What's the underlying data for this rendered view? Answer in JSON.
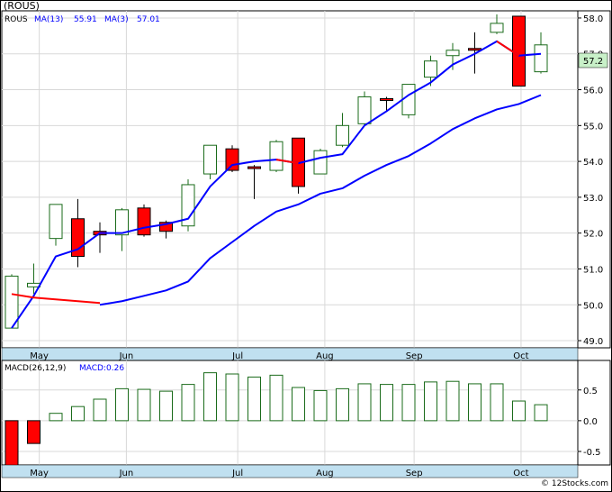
{
  "ticker_label": "(ROUS)",
  "copyright": "© 12Stocks.com",
  "colors": {
    "up_candle": "#1a6b1a",
    "down_candle": "#ff0000",
    "ma13": "#0000ff",
    "ma3_down": "#ff0000",
    "axis_band": "#c0e0f0",
    "grid": "#d8d8d8",
    "price_tag_bg": "#c8f0c8"
  },
  "chart_data": [
    {
      "type": "candlestick",
      "legend": {
        "symbol": "ROUS",
        "ma13_label": "MA(13)",
        "ma13_value": "55.91",
        "ma3_label": "MA(3)",
        "ma3_value": "57.01"
      },
      "last_price_tag": "57.2",
      "ylim": [
        48.8,
        58.2
      ],
      "y_ticks": [
        "49.0",
        "50.0",
        "51.0",
        "52.0",
        "53.0",
        "54.0",
        "55.0",
        "56.0",
        "57.0",
        "58.0"
      ],
      "x_ticks": [
        {
          "label": "May",
          "week": 1.25
        },
        {
          "label": "Jun",
          "week": 5.2
        },
        {
          "label": "Jul",
          "week": 10.25
        },
        {
          "label": "Aug",
          "week": 14.2
        },
        {
          "label": "Sep",
          "week": 18.25
        },
        {
          "label": "Oct",
          "week": 23.1
        }
      ],
      "candles": [
        {
          "open": 49.35,
          "high": 50.85,
          "low": 49.35,
          "close": 50.8
        },
        {
          "open": 50.5,
          "high": 51.15,
          "low": 50.3,
          "close": 50.6
        },
        {
          "open": 51.85,
          "high": 52.8,
          "low": 51.65,
          "close": 52.8
        },
        {
          "open": 52.4,
          "high": 52.95,
          "low": 51.05,
          "close": 51.35
        },
        {
          "open": 52.05,
          "high": 52.3,
          "low": 51.45,
          "close": 51.95
        },
        {
          "open": 51.95,
          "high": 52.7,
          "low": 51.5,
          "close": 52.65
        },
        {
          "open": 52.7,
          "high": 52.8,
          "low": 51.9,
          "close": 51.95
        },
        {
          "open": 52.3,
          "high": 52.35,
          "low": 51.85,
          "close": 52.05
        },
        {
          "open": 52.2,
          "high": 53.5,
          "low": 52.05,
          "close": 53.35
        },
        {
          "open": 53.65,
          "high": 54.45,
          "low": 53.5,
          "close": 54.45
        },
        {
          "open": 54.35,
          "high": 54.45,
          "low": 53.7,
          "close": 53.75
        },
        {
          "open": 53.85,
          "high": 53.9,
          "low": 52.95,
          "close": 53.8
        },
        {
          "open": 53.75,
          "high": 54.6,
          "low": 53.7,
          "close": 54.55
        },
        {
          "open": 54.65,
          "high": 54.65,
          "low": 53.1,
          "close": 53.3
        },
        {
          "open": 53.65,
          "high": 54.35,
          "low": 53.65,
          "close": 54.3
        },
        {
          "open": 54.45,
          "high": 55.35,
          "low": 54.4,
          "close": 55.0
        },
        {
          "open": 55.05,
          "high": 55.95,
          "low": 55.0,
          "close": 55.8
        },
        {
          "open": 55.75,
          "high": 55.8,
          "low": 55.4,
          "close": 55.7
        },
        {
          "open": 55.3,
          "high": 56.15,
          "low": 55.2,
          "close": 56.15
        },
        {
          "open": 56.35,
          "high": 56.95,
          "low": 56.1,
          "close": 56.8
        },
        {
          "open": 56.95,
          "high": 57.3,
          "low": 56.55,
          "close": 57.1
        },
        {
          "open": 57.15,
          "high": 57.6,
          "low": 56.45,
          "close": 57.1
        },
        {
          "open": 57.6,
          "high": 58.1,
          "low": 57.55,
          "close": 57.85
        },
        {
          "open": 58.05,
          "high": 58.05,
          "low": 56.1,
          "close": 56.1
        },
        {
          "open": 56.5,
          "high": 57.6,
          "low": 56.45,
          "close": 57.25
        }
      ],
      "ma13": [
        {
          "week": 0,
          "value": 49.35
        },
        {
          "week": 1,
          "value": 50.25
        },
        {
          "week": 2,
          "value": 51.35
        },
        {
          "week": 3,
          "value": 51.55
        },
        {
          "week": 4,
          "value": 52.0
        },
        {
          "week": 5,
          "value": 52.0
        },
        {
          "week": 6,
          "value": 52.15
        },
        {
          "week": 7,
          "value": 52.25
        },
        {
          "week": 8,
          "value": 52.4
        },
        {
          "week": 9,
          "value": 53.3
        },
        {
          "week": 10,
          "value": 53.9
        },
        {
          "week": 11,
          "value": 54.0
        },
        {
          "week": 12,
          "value": 54.05
        },
        {
          "week": 13,
          "value": 53.95
        },
        {
          "week": 14,
          "value": 54.1
        },
        {
          "week": 15,
          "value": 54.2
        },
        {
          "week": 16,
          "value": 55.0
        },
        {
          "week": 17,
          "value": 55.4
        },
        {
          "week": 18,
          "value": 55.85
        },
        {
          "week": 19,
          "value": 56.2
        },
        {
          "week": 20,
          "value": 56.7
        },
        {
          "week": 21,
          "value": 57.0
        },
        {
          "week": 22,
          "value": 57.35
        },
        {
          "week": 23,
          "value": 56.95
        },
        {
          "week": 24,
          "value": 57.0
        }
      ],
      "ma3_red_segments": [
        [
          {
            "week": 0,
            "value": 50.3
          },
          {
            "week": 1,
            "value": 50.2
          },
          {
            "week": 2,
            "value": 50.15
          },
          {
            "week": 3,
            "value": 50.1
          },
          {
            "week": 4,
            "value": 50.05
          }
        ],
        [
          {
            "week": 12,
            "value": 54.05
          },
          {
            "week": 13,
            "value": 53.95
          }
        ],
        [
          {
            "week": 22,
            "value": 57.35
          },
          {
            "week": 23,
            "value": 56.95
          }
        ]
      ],
      "ma13_low": [
        {
          "week": 4,
          "value": 50.0
        },
        {
          "week": 5,
          "value": 50.1
        },
        {
          "week": 6,
          "value": 50.25
        },
        {
          "week": 7,
          "value": 50.4
        },
        {
          "week": 8,
          "value": 50.65
        },
        {
          "week": 9,
          "value": 51.3
        },
        {
          "week": 10,
          "value": 51.75
        },
        {
          "week": 11,
          "value": 52.2
        },
        {
          "week": 12,
          "value": 52.6
        },
        {
          "week": 13,
          "value": 52.8
        },
        {
          "week": 14,
          "value": 53.1
        },
        {
          "week": 15,
          "value": 53.25
        },
        {
          "week": 16,
          "value": 53.6
        },
        {
          "week": 17,
          "value": 53.9
        },
        {
          "week": 18,
          "value": 54.15
        },
        {
          "week": 19,
          "value": 54.5
        },
        {
          "week": 20,
          "value": 54.9
        },
        {
          "week": 21,
          "value": 55.2
        },
        {
          "week": 22,
          "value": 55.45
        },
        {
          "week": 23,
          "value": 55.6
        },
        {
          "week": 24,
          "value": 55.85
        }
      ]
    },
    {
      "type": "bar",
      "legend": {
        "label": "MACD(26,12,9)",
        "value_label": "MACD:0.26"
      },
      "ylim": [
        -0.72,
        0.98
      ],
      "y_ticks": [
        "0.5",
        "0.0",
        "-0.5"
      ],
      "x_ticks": [
        "May",
        "Jun",
        "Jul",
        "Aug",
        "Sep",
        "Oct"
      ],
      "values": [
        -0.85,
        -0.37,
        0.12,
        0.23,
        0.35,
        0.52,
        0.51,
        0.48,
        0.59,
        0.78,
        0.76,
        0.71,
        0.74,
        0.54,
        0.49,
        0.52,
        0.6,
        0.59,
        0.59,
        0.63,
        0.64,
        0.6,
        0.6,
        0.32,
        0.26
      ]
    }
  ]
}
